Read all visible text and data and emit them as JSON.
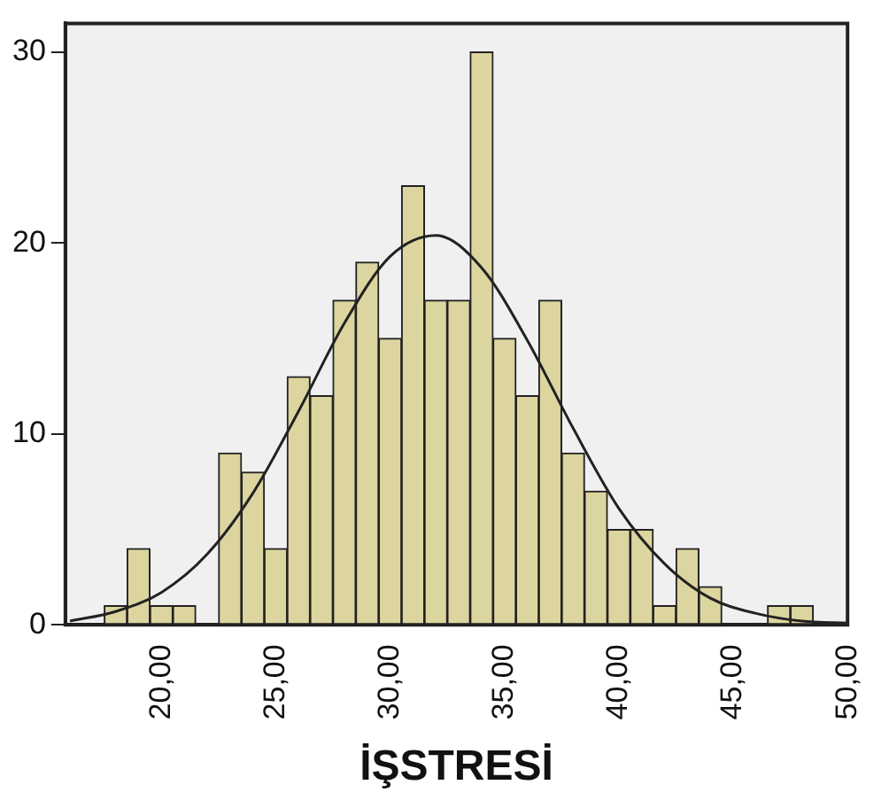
{
  "chart_data": {
    "type": "histogram",
    "xlabel": "İŞSTRESİ",
    "xlim": [
      15.8,
      50
    ],
    "ylim": [
      0,
      31.5
    ],
    "xticks": [
      {
        "value": 20,
        "label": "20,00"
      },
      {
        "value": 25,
        "label": "25,00"
      },
      {
        "value": 30,
        "label": "30,00"
      },
      {
        "value": 35,
        "label": "35,00"
      },
      {
        "value": 40,
        "label": "40,00"
      },
      {
        "value": 45,
        "label": "45,00"
      },
      {
        "value": 50,
        "label": "50,00"
      }
    ],
    "yticks": [
      0,
      10,
      20,
      30
    ],
    "grid": false,
    "legend": false,
    "series": [
      {
        "type": "histogram",
        "color": "#ddd59f",
        "bins": [
          17.5,
          18.5,
          19.5,
          20.5,
          21.5,
          22.5,
          23.5,
          24.5,
          25.5,
          26.5,
          27.5,
          28.5,
          29.5,
          30.5,
          31.5,
          32.5,
          33.5,
          34.5,
          35.5,
          36.5,
          37.5,
          38.5,
          39.5,
          40.5,
          41.5,
          42.5,
          43.5,
          44.5,
          45.5,
          46.5,
          47.5,
          48.5
        ],
        "values": [
          1,
          4,
          1,
          1,
          0,
          9,
          8,
          4,
          13,
          12,
          17,
          19,
          15,
          23,
          17,
          17,
          30,
          15,
          12,
          17,
          9,
          7,
          5,
          5,
          1,
          4,
          2,
          0,
          0,
          1,
          1
        ]
      },
      {
        "type": "line",
        "color": "#222222",
        "x": [
          16,
          18,
          20,
          22,
          24,
          26,
          28,
          30,
          32,
          34,
          36,
          38,
          40,
          42,
          44,
          46,
          48,
          50
        ],
        "values": [
          0.2,
          0.7,
          1.7,
          3.7,
          6.9,
          11.2,
          15.8,
          19.3,
          20.4,
          18.7,
          14.9,
          10.3,
          6.1,
          3.2,
          1.4,
          0.6,
          0.2,
          0.1
        ]
      }
    ]
  }
}
